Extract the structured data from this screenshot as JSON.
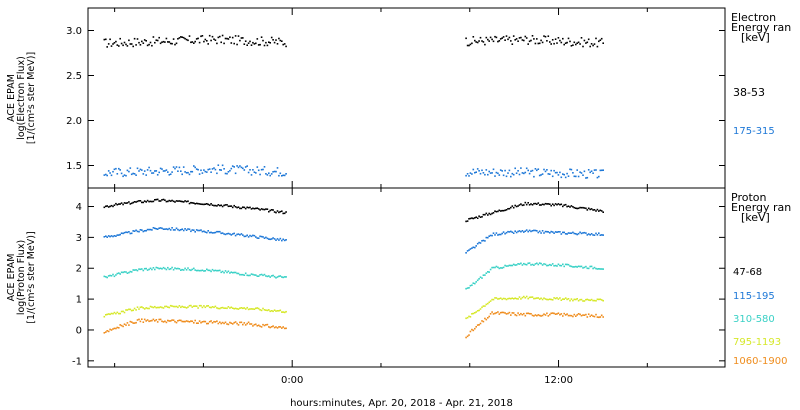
{
  "chart_data": [
    {
      "type": "scatter",
      "panel": "electron",
      "ylabel_lines": [
        "ACE EPAM",
        "log(Electron Flux)",
        "[1/(cm²s ster MeV)]"
      ],
      "ylim": [
        1.25,
        3.25
      ],
      "yticks": [
        1.5,
        2.0,
        2.5,
        3.0
      ],
      "ytick_labels": [
        "1.5",
        "2.0",
        "2.5",
        "3.0"
      ],
      "legend_title_lines": [
        "Electron",
        "Energy ran",
        "[keV]"
      ],
      "series": [
        {
          "name": "38-53",
          "color": "#000000",
          "level": 2.88,
          "noise": 0.05,
          "segments": [
            [
              -8.5,
              -0.3
            ],
            [
              7.8,
              14.0
            ]
          ],
          "trend": [
            [
              -8.5,
              2.86
            ],
            [
              -3.5,
              2.9
            ],
            [
              -0.3,
              2.87
            ],
            [
              7.8,
              2.88
            ],
            [
              10.5,
              2.9
            ],
            [
              14.0,
              2.86
            ]
          ]
        },
        {
          "name": "175-315",
          "color": "#1e78d7",
          "level": 1.43,
          "noise": 0.05,
          "segments": [
            [
              -8.5,
              -0.3
            ],
            [
              7.8,
              14.0
            ]
          ],
          "trend": [
            [
              -8.5,
              1.42
            ],
            [
              -3.5,
              1.46
            ],
            [
              -0.3,
              1.43
            ],
            [
              7.8,
              1.43
            ],
            [
              11.5,
              1.42
            ],
            [
              14.0,
              1.4
            ]
          ]
        }
      ]
    },
    {
      "type": "scatter",
      "panel": "proton",
      "ylabel_lines": [
        "ACE EPAM",
        "log(Proton Flux)",
        "[1/(cm²s ster MeV)]"
      ],
      "ylim": [
        -1.2,
        4.6
      ],
      "yticks": [
        -1,
        0,
        1,
        2,
        3,
        4
      ],
      "ytick_labels": [
        "-1",
        "0",
        "1",
        "2",
        "3",
        "4"
      ],
      "legend_title_lines": [
        "Proton",
        "Energy ran",
        "[keV]"
      ],
      "series": [
        {
          "name": "47-68",
          "color": "#000000",
          "noise": 0.04,
          "segments": [
            [
              -8.5,
              -0.3
            ],
            [
              7.8,
              14.0
            ]
          ],
          "trend": [
            [
              -8.5,
              4.0
            ],
            [
              -7.0,
              4.15
            ],
            [
              -6.0,
              4.2
            ],
            [
              -4.0,
              4.1
            ],
            [
              -2.0,
              3.95
            ],
            [
              -0.3,
              3.8
            ],
            [
              7.8,
              3.55
            ],
            [
              9.0,
              3.8
            ],
            [
              10.5,
              4.1
            ],
            [
              12.0,
              4.05
            ],
            [
              14.0,
              3.85
            ]
          ]
        },
        {
          "name": "115-195",
          "color": "#1e78d7",
          "noise": 0.04,
          "segments": [
            [
              -8.5,
              -0.3
            ],
            [
              7.8,
              14.0
            ]
          ],
          "trend": [
            [
              -8.5,
              3.0
            ],
            [
              -7.0,
              3.2
            ],
            [
              -6.0,
              3.3
            ],
            [
              -4.0,
              3.2
            ],
            [
              -2.0,
              3.05
            ],
            [
              -0.3,
              2.9
            ],
            [
              7.8,
              2.5
            ],
            [
              9.0,
              3.1
            ],
            [
              10.5,
              3.2
            ],
            [
              12.0,
              3.15
            ],
            [
              14.0,
              3.1
            ]
          ]
        },
        {
          "name": "310-580",
          "color": "#3ad1c6",
          "noise": 0.04,
          "segments": [
            [
              -8.5,
              -0.3
            ],
            [
              7.8,
              14.0
            ]
          ],
          "trend": [
            [
              -8.5,
              1.7
            ],
            [
              -7.0,
              1.95
            ],
            [
              -6.0,
              2.0
            ],
            [
              -4.0,
              1.95
            ],
            [
              -2.0,
              1.8
            ],
            [
              -0.3,
              1.7
            ],
            [
              7.8,
              1.3
            ],
            [
              9.0,
              2.0
            ],
            [
              10.5,
              2.15
            ],
            [
              12.0,
              2.1
            ],
            [
              14.0,
              2.0
            ]
          ]
        },
        {
          "name": "795-1193",
          "color": "#d6e82a",
          "noise": 0.04,
          "segments": [
            [
              -8.5,
              -0.3
            ],
            [
              7.8,
              14.0
            ]
          ],
          "trend": [
            [
              -8.5,
              0.45
            ],
            [
              -7.0,
              0.7
            ],
            [
              -6.0,
              0.75
            ],
            [
              -4.0,
              0.75
            ],
            [
              -2.0,
              0.7
            ],
            [
              -0.3,
              0.6
            ],
            [
              7.8,
              0.35
            ],
            [
              9.0,
              1.0
            ],
            [
              10.5,
              1.05
            ],
            [
              12.0,
              1.0
            ],
            [
              14.0,
              0.95
            ]
          ]
        },
        {
          "name": "1060-1900",
          "color": "#ef8d1e",
          "noise": 0.05,
          "segments": [
            [
              -8.5,
              -0.3
            ],
            [
              7.8,
              14.0
            ]
          ],
          "trend": [
            [
              -8.5,
              -0.05
            ],
            [
              -7.0,
              0.3
            ],
            [
              -6.0,
              0.3
            ],
            [
              -4.0,
              0.25
            ],
            [
              -2.0,
              0.2
            ],
            [
              -0.3,
              0.05
            ],
            [
              7.8,
              -0.2
            ],
            [
              9.0,
              0.55
            ],
            [
              10.5,
              0.5
            ],
            [
              12.0,
              0.5
            ],
            [
              14.0,
              0.45
            ]
          ]
        }
      ]
    }
  ],
  "x_axis": {
    "xlim": [
      -9.2,
      19.5
    ],
    "major_ticks": [
      0,
      12
    ],
    "major_labels": [
      "0:00",
      "12:00"
    ],
    "minor_ticks": [
      -8,
      -4,
      4,
      8,
      16
    ],
    "label": "hours:minutes, Apr. 20, 2018 - Apr. 21, 2018"
  }
}
